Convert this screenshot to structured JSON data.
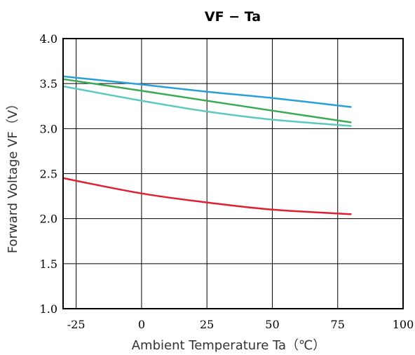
{
  "chart_data": {
    "type": "line",
    "title": "VF − Ta",
    "xlabel": "Ambient Temperature  Ta（℃）",
    "ylabel": "Forward Voltage  VF（V）",
    "xlim": [
      -30,
      100
    ],
    "ylim": [
      1.0,
      4.0
    ],
    "x_ticks": [
      -25,
      0,
      25,
      50,
      75,
      100
    ],
    "x_tick_labels": [
      "-25",
      "0",
      "25",
      "50",
      "75",
      "100"
    ],
    "y_ticks": [
      1.0,
      1.5,
      2.0,
      2.5,
      3.0,
      3.5,
      4.0
    ],
    "y_tick_labels": [
      "1.0",
      "1.5",
      "2.0",
      "2.5",
      "3.0",
      "3.5",
      "4.0"
    ],
    "grid": true,
    "series": [
      {
        "color": "#2aa0d8",
        "x": [
          -30,
          0,
          25,
          50,
          80
        ],
        "y": [
          3.58,
          3.49,
          3.41,
          3.34,
          3.24
        ]
      },
      {
        "color": "#3aaa55",
        "x": [
          -30,
          0,
          25,
          50,
          80
        ],
        "y": [
          3.55,
          3.42,
          3.31,
          3.2,
          3.07
        ]
      },
      {
        "color": "#5cc8c0",
        "x": [
          -30,
          0,
          25,
          50,
          80
        ],
        "y": [
          3.47,
          3.31,
          3.19,
          3.1,
          3.03
        ]
      },
      {
        "color": "#e02030",
        "x": [
          -30,
          0,
          25,
          50,
          80
        ],
        "y": [
          2.45,
          2.28,
          2.18,
          2.1,
          2.05
        ]
      }
    ]
  }
}
